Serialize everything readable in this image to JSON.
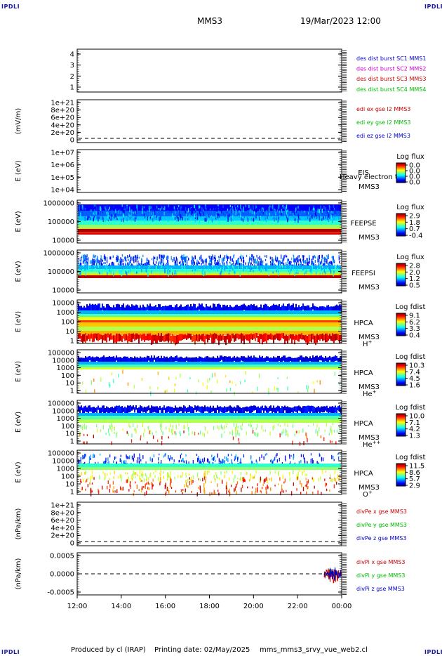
{
  "corners": {
    "top_left": "IPDLI",
    "top_right": "IPDLI",
    "bottom_left": "IPDLI",
    "bottom_right": "IPDLI"
  },
  "header": {
    "spacecraft": "MMS3",
    "datetime": "19/Mar/2023 12:00"
  },
  "footer": {
    "produced_by": "Produced by cl (IRAP)",
    "printing_date": "Printing date: 02/May/2025",
    "filename": "mms_mms3_srvy_vue_web2.cl"
  },
  "colors": {
    "mms1": "#0000cc",
    "mms2": "#cc00cc",
    "mms3": "#cc0000",
    "mms4": "#00bb00",
    "x": "#cc0000",
    "y": "#00bb00",
    "z": "#0000cc"
  },
  "x_axis": {
    "ticks": [
      "12:00",
      "14:00",
      "16:00",
      "18:00",
      "20:00",
      "22:00",
      "00:00"
    ]
  },
  "chart_data": [
    {
      "type": "line",
      "ylabel": "",
      "yticks": [
        "4",
        "3",
        "2",
        "1"
      ],
      "ylim": [
        0.5,
        4.5
      ],
      "legend": [
        {
          "label": "des dist burst SC1 MMS1",
          "color": "#0000cc"
        },
        {
          "label": "des dist burst SC2 MMS2",
          "color": "#cc00cc"
        },
        {
          "label": "des dist burst SC3 MMS3",
          "color": "#cc0000"
        },
        {
          "label": "des dist burst SC4 MMS4",
          "color": "#00bb00"
        }
      ]
    },
    {
      "type": "line",
      "ylabel": "(mV/m)",
      "yticks": [
        "1e+21",
        "8e+20",
        "6e+20",
        "4e+20",
        "2e+20",
        "0"
      ],
      "legend": [
        {
          "label": "edi ex gse l2 MMS3",
          "color": "#cc0000"
        },
        {
          "label": "edi ey gse l2 MMS3",
          "color": "#00bb00"
        },
        {
          "label": "edi ez gse l2 MMS3",
          "color": "#0000cc"
        }
      ]
    },
    {
      "type": "heatmap",
      "ylabel": "E (eV)",
      "yticks": [
        "1e+07",
        "1e+06",
        "1e+05",
        "1e+04"
      ],
      "label_top": "EIS",
      "overflow_text": "Heavy electron to",
      "label_bottom": "MMS3",
      "colorbar_title": "Log flux",
      "colorbar_ticks": [
        "0.0",
        "0.0",
        "0.0",
        "0.0"
      ]
    },
    {
      "type": "heatmap",
      "ylabel": "E (eV)",
      "yticks": [
        "1000000",
        "100000",
        "10000"
      ],
      "label_top": "FEEPSE",
      "label_bottom": "MMS3",
      "colorbar_title": "Log flux",
      "colorbar_ticks": [
        "2.9",
        "1.8",
        "0.7",
        "-0.4"
      ]
    },
    {
      "type": "heatmap",
      "ylabel": "E (eV)",
      "yticks": [
        "1000000",
        "100000",
        "10000"
      ],
      "label_top": "FEEPSI",
      "label_bottom": "MMS3",
      "colorbar_title": "Log flux",
      "colorbar_ticks": [
        "2.8",
        "2.0",
        "1.2",
        "0.5"
      ]
    },
    {
      "type": "heatmap",
      "ylabel": "E (eV)",
      "yticks": [
        "10000",
        "1000",
        "100",
        "10",
        "1"
      ],
      "label_top": "HPCA",
      "label_bottom": "MMS3",
      "species": "H",
      "species_charge": "+",
      "colorbar_title": "Log fdist",
      "colorbar_ticks": [
        "9.1",
        "6.2",
        "3.3",
        "0.4"
      ]
    },
    {
      "type": "heatmap",
      "ylabel": "E (eV)",
      "yticks": [
        "100000",
        "10000",
        "1000",
        "100",
        "10",
        "1"
      ],
      "label_top": "HPCA",
      "label_bottom": "MMS3",
      "species": "He",
      "species_charge": "+",
      "colorbar_title": "Log fdist",
      "colorbar_ticks": [
        "10.3",
        "7.4",
        "4.5",
        "1.6"
      ]
    },
    {
      "type": "heatmap",
      "ylabel": "E (eV)",
      "yticks": [
        "100000",
        "10000",
        "1000",
        "100",
        "10",
        "1"
      ],
      "label_top": "HPCA",
      "label_bottom": "MMS3",
      "species": "He",
      "species_charge": "++",
      "colorbar_title": "Log fdist",
      "colorbar_ticks": [
        "10.0",
        "7.1",
        "4.2",
        "1.3"
      ]
    },
    {
      "type": "heatmap",
      "ylabel": "E (eV)",
      "yticks": [
        "100000",
        "10000",
        "1000",
        "100",
        "10",
        "1"
      ],
      "label_top": "HPCA",
      "label_bottom": "MMS3",
      "species": "O",
      "species_charge": "+",
      "colorbar_title": "Log fdist",
      "colorbar_ticks": [
        "11.5",
        "8.6",
        "5.7",
        "2.9"
      ]
    },
    {
      "type": "line",
      "ylabel": "(nPa/km)",
      "yticks": [
        "1e+21",
        "8e+20",
        "6e+20",
        "4e+20",
        "2e+20",
        "0"
      ],
      "legend": [
        {
          "label": "divPe x gse MMS3",
          "color": "#cc0000"
        },
        {
          "label": "divPe y gse MMS3",
          "color": "#00bb00"
        },
        {
          "label": "divPe z gse MMS3",
          "color": "#0000cc"
        }
      ]
    },
    {
      "type": "line",
      "ylabel": "(nPa/km)",
      "yticks": [
        "0.0005",
        "0.0000",
        "-0.0005"
      ],
      "ylim": [
        -0.0009,
        0.0009
      ],
      "legend": [
        {
          "label": "divPi x gse MMS3",
          "color": "#cc0000"
        },
        {
          "label": "divPi y gse MMS3",
          "color": "#00bb00"
        },
        {
          "label": "divPi z gse MMS3",
          "color": "#0000cc"
        }
      ]
    }
  ]
}
